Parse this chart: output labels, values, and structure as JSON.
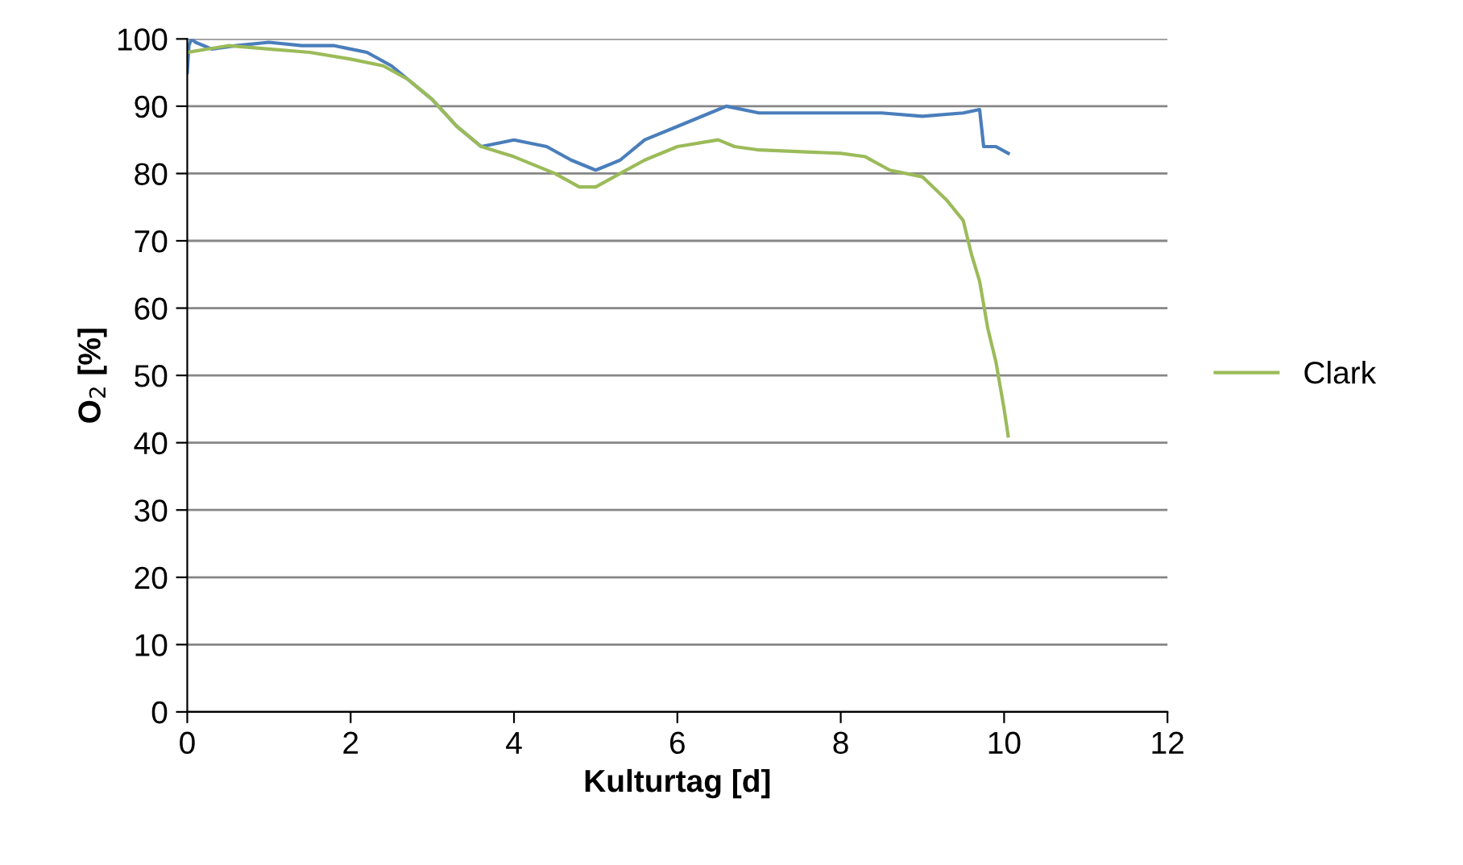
{
  "chart_data": {
    "type": "line",
    "xlabel": "Kulturtag [d]",
    "ylabel": "O$_{2}$ [%]",
    "xlim": [
      0,
      12
    ],
    "xticks": [
      0,
      2,
      4,
      6,
      8,
      10,
      12
    ],
    "ylim": [
      0,
      100
    ],
    "yticks": [
      0,
      10,
      20,
      30,
      40,
      50,
      60,
      70,
      80,
      90,
      100
    ],
    "grid": "y",
    "legend": "right",
    "marker": "none",
    "line_style": "solid",
    "series": [
      {
        "color": "#4a7ebb",
        "x": [
          0,
          0.02,
          0.05,
          0.1,
          0.3,
          0.6,
          1.0,
          1.4,
          1.8,
          2.0,
          2.2,
          2.5,
          2.8,
          3.0,
          3.3,
          3.6,
          4.0,
          4.4,
          4.7,
          5.0,
          5.3,
          5.6,
          6.0,
          6.4,
          6.6,
          7.0,
          7.5,
          8.0,
          8.5,
          9.0,
          9.5,
          9.7,
          9.75,
          9.9,
          10.05
        ],
        "values": [
          95,
          99,
          100,
          99.5,
          98.5,
          99,
          99.5,
          99,
          99,
          98.5,
          98,
          96,
          93,
          91,
          87,
          84,
          85,
          84,
          82,
          80.5,
          82,
          85,
          87,
          89,
          90,
          89,
          89,
          89,
          89,
          88.5,
          89,
          89.5,
          84,
          84,
          83
        ]
      },
      {
        "name": "Clark",
        "color": "#9bbb59",
        "x": [
          0,
          0.5,
          1.0,
          1.5,
          2.0,
          2.4,
          2.7,
          3.0,
          3.3,
          3.6,
          4.0,
          4.5,
          4.8,
          5.0,
          5.3,
          5.6,
          6.0,
          6.5,
          6.7,
          7.0,
          8.0,
          8.3,
          8.6,
          9.0,
          9.3,
          9.5,
          9.6,
          9.7,
          9.8,
          9.9,
          10.0,
          10.05
        ],
        "values": [
          98,
          99,
          98.5,
          98,
          97,
          96,
          94,
          91,
          87,
          84,
          82.5,
          80,
          78,
          78,
          80,
          82,
          84,
          85,
          84,
          83.5,
          83,
          82.5,
          80.5,
          79.5,
          76,
          73,
          68,
          64,
          57,
          52,
          45,
          41
        ]
      }
    ]
  }
}
